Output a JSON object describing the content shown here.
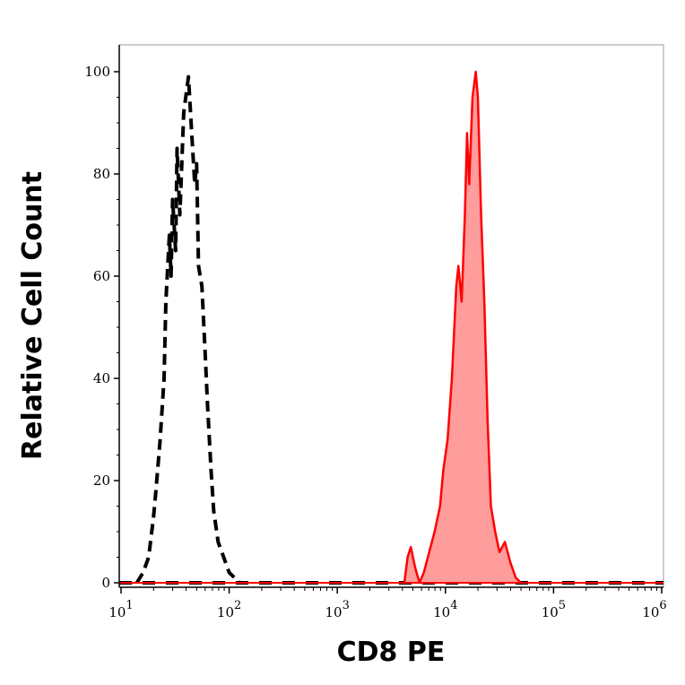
{
  "chart_data": {
    "type": "area",
    "title": "",
    "xlabel": "CD8 PE",
    "ylabel": "Relative Cell Count",
    "xscale": "log",
    "xlim": [
      10,
      1000000
    ],
    "ylim": [
      -1,
      105
    ],
    "grid": false,
    "legend": "none",
    "x_ticks": [
      {
        "base": "10",
        "exp": "1",
        "value": 10
      },
      {
        "base": "10",
        "exp": "2",
        "value": 100
      },
      {
        "base": "10",
        "exp": "3",
        "value": 1000
      },
      {
        "base": "10",
        "exp": "4",
        "value": 10000
      },
      {
        "base": "10",
        "exp": "5",
        "value": 100000
      },
      {
        "base": "10",
        "exp": "6",
        "value": 1000000
      }
    ],
    "y_ticks": [
      "0",
      "20",
      "40",
      "60",
      "80",
      "100"
    ],
    "series": [
      {
        "style": "dashed",
        "color": "#000000",
        "fill": "none",
        "x": [
          14,
          16,
          18,
          20,
          21,
          23,
          25,
          26,
          28,
          29,
          30,
          32,
          33,
          35,
          38,
          42,
          45,
          48,
          50,
          52,
          56,
          60,
          63,
          68,
          72,
          79,
          89,
          100,
          112,
          126
        ],
        "y": [
          0,
          2,
          5,
          13,
          18,
          28,
          40,
          55,
          68,
          60,
          75,
          65,
          85,
          72,
          92,
          99,
          88,
          78,
          82,
          62,
          58,
          45,
          35,
          22,
          14,
          8,
          5,
          2,
          1,
          0
        ]
      },
      {
        "style": "solid",
        "color": "#ff0000",
        "fill": "#ff9c9c",
        "x": [
          4169,
          4467,
          4786,
          5248,
          5754,
          6310,
          7079,
          7943,
          8913,
          9550,
          10471,
          11482,
          12589,
          13183,
          14125,
          15136,
          15849,
          16596,
          17783,
          19055,
          19953,
          21380,
          22909,
          24547,
          26303,
          28840,
          31623,
          35481,
          39811,
          44668,
          50119
        ],
        "y": [
          0,
          5,
          7,
          3,
          0,
          2,
          6,
          10,
          15,
          22,
          28,
          40,
          58,
          62,
          55,
          72,
          88,
          78,
          95,
          100,
          95,
          72,
          55,
          32,
          15,
          10,
          6,
          8,
          4,
          1,
          0
        ]
      }
    ]
  }
}
